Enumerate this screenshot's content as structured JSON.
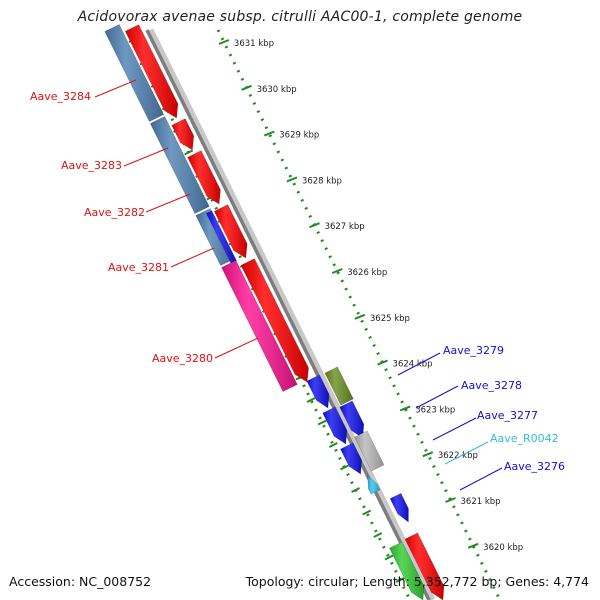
{
  "title": "Acidovorax avenae subsp. citrulli AAC00-1, complete genome",
  "footer": {
    "accession": "Accession: NC_008752",
    "summary": "Topology: circular; Length: 5,352,772 bp; Genes: 4,774"
  },
  "scale_ticks": [
    {
      "label": "3631 kbp",
      "kbp": 3631
    },
    {
      "label": "3630 kbp",
      "kbp": 3630
    },
    {
      "label": "3629 kbp",
      "kbp": 3629
    },
    {
      "label": "3628 kbp",
      "kbp": 3628
    },
    {
      "label": "3627 kbp",
      "kbp": 3627
    },
    {
      "label": "3626 kbp",
      "kbp": 3626
    },
    {
      "label": "3625 kbp",
      "kbp": 3625
    },
    {
      "label": "3624 kbp",
      "kbp": 3624
    },
    {
      "label": "3623 kbp",
      "kbp": 3623
    },
    {
      "label": "3622 kbp",
      "kbp": 3622
    },
    {
      "label": "3621 kbp",
      "kbp": 3621
    },
    {
      "label": "3620 kbp",
      "kbp": 3620
    }
  ],
  "gene_labels_left": [
    {
      "name": "Aave_3284",
      "color": "#dd1111"
    },
    {
      "name": "Aave_3283",
      "color": "#dd1111"
    },
    {
      "name": "Aave_3282",
      "color": "#dd1111"
    },
    {
      "name": "Aave_3281",
      "color": "#dd1111"
    },
    {
      "name": "Aave_3280",
      "color": "#dd1111"
    }
  ],
  "gene_labels_right": [
    {
      "name": "Aave_3279",
      "color": "#1111cc"
    },
    {
      "name": "Aave_3278",
      "color": "#1111cc"
    },
    {
      "name": "Aave_3277",
      "color": "#1111cc"
    },
    {
      "name": "Aave_R0042",
      "color": "#33bbdd"
    },
    {
      "name": "Aave_3276",
      "color": "#1111cc"
    }
  ],
  "colors": {
    "red": "#ff0000",
    "blue_steel": "#4f82b4",
    "pink": "#ff1493",
    "blue": "#1212ee",
    "olive": "#6b8e23",
    "grey": "#b8b8b8",
    "cyan": "#2ec4f0",
    "green": "#33cc33",
    "dotted_green": "#228b22"
  }
}
